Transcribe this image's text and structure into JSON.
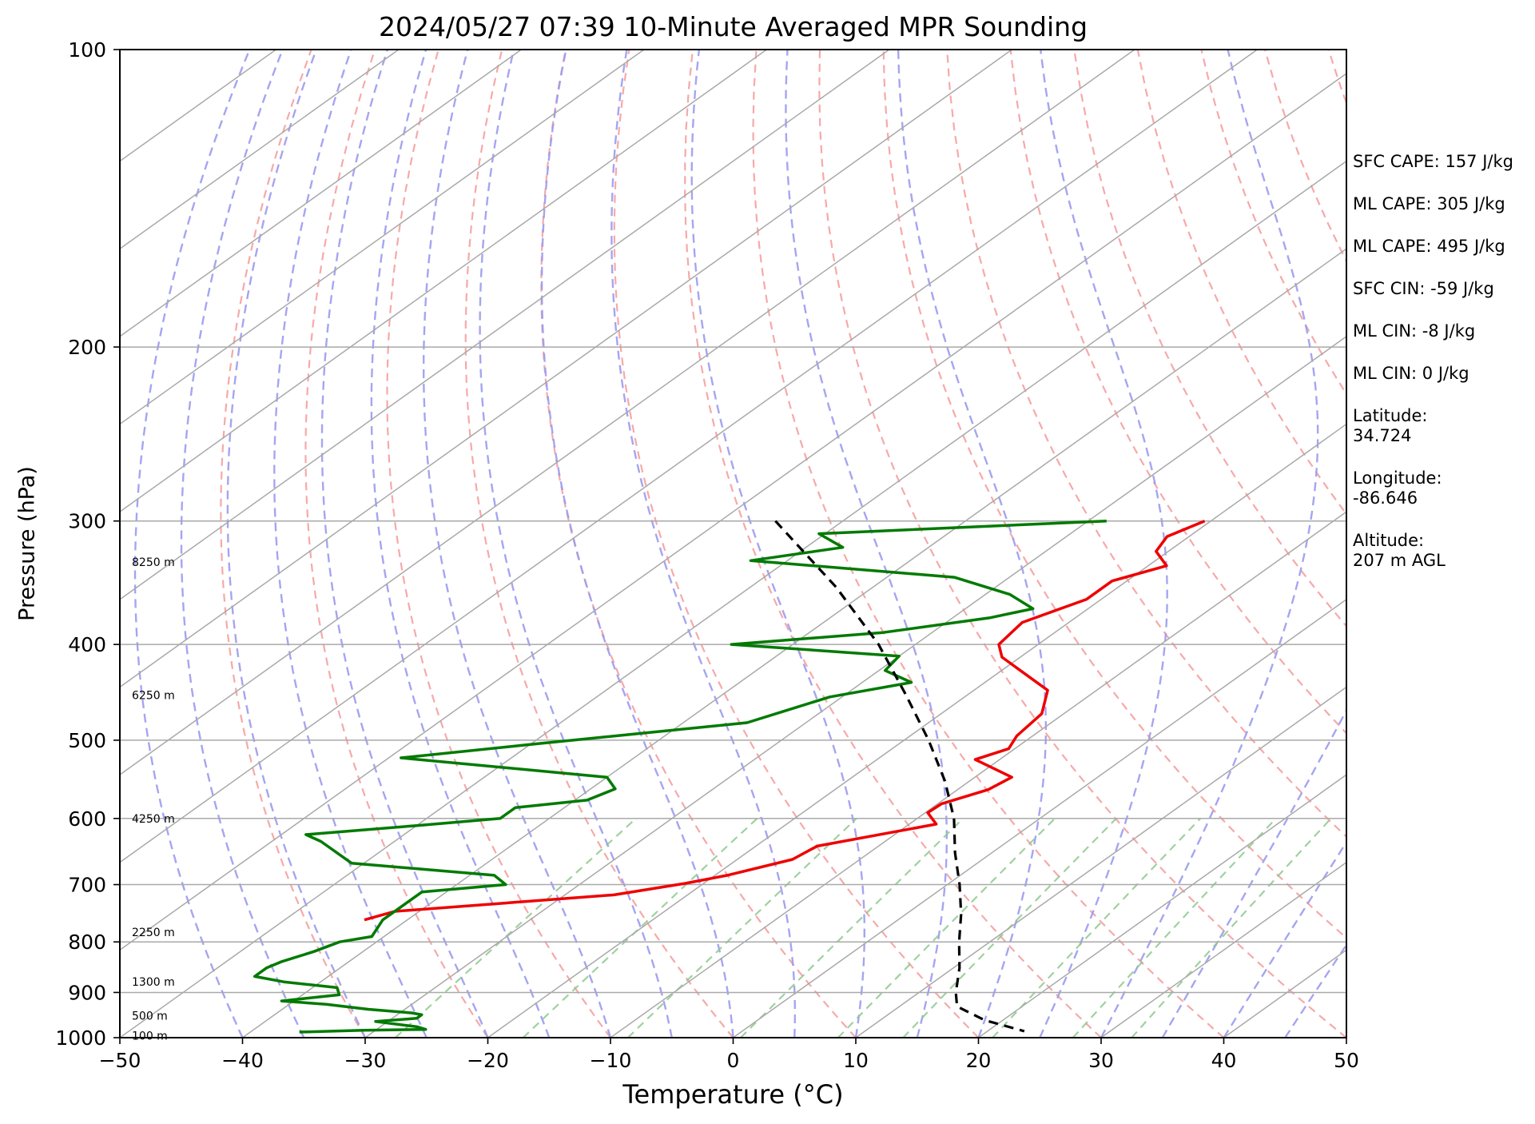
{
  "chart_data": {
    "type": "line",
    "title": "2024/05/27 07:39 10-Minute Averaged MPR Sounding",
    "xlabel": "Temperature (°C)",
    "ylabel": "Pressure (hPa)",
    "xlim": [
      -50,
      50
    ],
    "ylim": [
      1000,
      100
    ],
    "y_scale": "log",
    "grid": true,
    "x_ticks": [
      -50,
      -40,
      -30,
      -20,
      -10,
      0,
      10,
      20,
      30,
      40,
      50
    ],
    "x_tick_labels": [
      "−50",
      "−40",
      "−30",
      "−20",
      "−10",
      "0",
      "10",
      "20",
      "30",
      "40",
      "50"
    ],
    "y_ticks": [
      100,
      200,
      300,
      400,
      500,
      600,
      700,
      800,
      900,
      1000
    ],
    "y_tick_labels": [
      "100",
      "200",
      "300",
      "400",
      "500",
      "600",
      "700",
      "800",
      "900",
      "1000"
    ],
    "height_labels": [
      {
        "p": 330,
        "text": "8250 m"
      },
      {
        "p": 450,
        "text": "6250 m"
      },
      {
        "p": 600,
        "text": "4250 m"
      },
      {
        "p": 782,
        "text": "2250 m"
      },
      {
        "p": 878,
        "text": "1300 m"
      },
      {
        "p": 950,
        "text": "500 m"
      },
      {
        "p": 995,
        "text": "100 m"
      }
    ],
    "colors": {
      "temperature": "#ee0000",
      "dewpoint": "#007a00",
      "parcel": "#000000",
      "isotherm": "#a9a9a9",
      "isobar": "#a9a9a9",
      "dry_adiabat": "#f5a0a0",
      "moist_adiabat": "#9b9bef",
      "mixing_ratio": "#8ec98e"
    },
    "series": [
      {
        "type": "temperature",
        "points": [
          {
            "p": 300,
            "t": -20.5
          },
          {
            "p": 311,
            "t": -21.8
          },
          {
            "p": 322,
            "t": -21.0
          },
          {
            "p": 333,
            "t": -18.5
          },
          {
            "p": 345,
            "t": -21.2
          },
          {
            "p": 360,
            "t": -21.2
          },
          {
            "p": 380,
            "t": -23.8
          },
          {
            "p": 400,
            "t": -23.2
          },
          {
            "p": 412,
            "t": -21.5
          },
          {
            "p": 445,
            "t": -14.0
          },
          {
            "p": 470,
            "t": -11.8
          },
          {
            "p": 495,
            "t": -11.3
          },
          {
            "p": 510,
            "t": -10.5
          },
          {
            "p": 523,
            "t": -12.0
          },
          {
            "p": 545,
            "t": -7.0
          },
          {
            "p": 561,
            "t": -7.5
          },
          {
            "p": 580,
            "t": -9.7
          },
          {
            "p": 592,
            "t": -9.8
          },
          {
            "p": 608,
            "t": -7.8
          },
          {
            "p": 640,
            "t": -15.0
          },
          {
            "p": 660,
            "t": -15.5
          },
          {
            "p": 685,
            "t": -19.0
          },
          {
            "p": 698,
            "t": -21.5
          },
          {
            "p": 717,
            "t": -26.0
          },
          {
            "p": 745,
            "t": -42.0
          },
          {
            "p": 760,
            "t": -43.5
          }
        ]
      },
      {
        "type": "dewpoint",
        "points": [
          {
            "p": 300,
            "t": -28.5
          },
          {
            "p": 309,
            "t": -50.5
          },
          {
            "p": 319,
            "t": -47.0
          },
          {
            "p": 329,
            "t": -53.0
          },
          {
            "p": 342,
            "t": -34.5
          },
          {
            "p": 356,
            "t": -28.0
          },
          {
            "p": 368,
            "t": -24.5
          },
          {
            "p": 376,
            "t": -27.0
          },
          {
            "p": 389,
            "t": -34.0
          },
          {
            "p": 400,
            "t": -45.0
          },
          {
            "p": 411,
            "t": -30.0
          },
          {
            "p": 425,
            "t": -29.5
          },
          {
            "p": 437,
            "t": -26.0
          },
          {
            "p": 452,
            "t": -31.0
          },
          {
            "p": 480,
            "t": -34.8
          },
          {
            "p": 505,
            "t": -50.0
          },
          {
            "p": 521,
            "t": -59.0
          },
          {
            "p": 545,
            "t": -40.0
          },
          {
            "p": 560,
            "t": -38.0
          },
          {
            "p": 575,
            "t": -39.0
          },
          {
            "p": 585,
            "t": -44.0
          },
          {
            "p": 600,
            "t": -44.0
          },
          {
            "p": 610,
            "t": -50.0
          },
          {
            "p": 623,
            "t": -58.0
          },
          {
            "p": 633,
            "t": -56.0
          },
          {
            "p": 666,
            "t": -51.0
          },
          {
            "p": 685,
            "t": -38.0
          },
          {
            "p": 700,
            "t": -36.0
          },
          {
            "p": 712,
            "t": -42.0
          },
          {
            "p": 730,
            "t": -42.0
          },
          {
            "p": 760,
            "t": -42.0
          },
          {
            "p": 790,
            "t": -41.0
          },
          {
            "p": 800,
            "t": -43.0
          },
          {
            "p": 818,
            "t": -44.0
          },
          {
            "p": 838,
            "t": -45.5
          },
          {
            "p": 850,
            "t": -46.0
          },
          {
            "p": 867,
            "t": -46.0
          },
          {
            "p": 878,
            "t": -43.0
          },
          {
            "p": 890,
            "t": -38.0
          },
          {
            "p": 905,
            "t": -37.0
          },
          {
            "p": 918,
            "t": -41.0
          },
          {
            "p": 925,
            "t": -37.0
          },
          {
            "p": 936,
            "t": -33.0
          },
          {
            "p": 944,
            "t": -29.0
          },
          {
            "p": 948,
            "t": -28.0
          },
          {
            "p": 956,
            "t": -28.0
          },
          {
            "p": 963,
            "t": -31.0
          },
          {
            "p": 975,
            "t": -27.0
          },
          {
            "p": 981,
            "t": -26.0
          },
          {
            "p": 983,
            "t": -31.0
          },
          {
            "p": 987,
            "t": -36.0
          }
        ]
      },
      {
        "type": "parcel",
        "points": [
          {
            "p": 300,
            "t": -55.5
          },
          {
            "p": 350,
            "t": -43.0
          },
          {
            "p": 400,
            "t": -33.0
          },
          {
            "p": 450,
            "t": -25.0
          },
          {
            "p": 500,
            "t": -18.0
          },
          {
            "p": 550,
            "t": -12.0
          },
          {
            "p": 600,
            "t": -7.0
          },
          {
            "p": 650,
            "t": -3.0
          },
          {
            "p": 700,
            "t": 1.0
          },
          {
            "p": 750,
            "t": 4.5
          },
          {
            "p": 800,
            "t": 7.5
          },
          {
            "p": 850,
            "t": 10.5
          },
          {
            "p": 900,
            "t": 13.0
          },
          {
            "p": 930,
            "t": 14.7
          },
          {
            "p": 960,
            "t": 18.5
          },
          {
            "p": 985,
            "t": 23.0
          }
        ]
      }
    ]
  },
  "indices": [
    {
      "label": "SFC CAPE",
      "text": "SFC CAPE: 157 J/kg"
    },
    {
      "label": "ML CAPE",
      "text": "ML CAPE: 305 J/kg"
    },
    {
      "label": "ML CAPE",
      "text": "ML CAPE: 495 J/kg"
    },
    {
      "label": "SFC CIN",
      "text": "SFC CIN: -59 J/kg"
    },
    {
      "label": "ML CIN",
      "text": "ML CIN: -8 J/kg"
    },
    {
      "label": "ML CIN",
      "text": "ML CIN: 0 J/kg"
    }
  ],
  "site": {
    "latitude": "Latitude:\n34.724",
    "longitude": "Longitude:\n-86.646",
    "altitude": "Altitude:\n207 m AGL"
  }
}
